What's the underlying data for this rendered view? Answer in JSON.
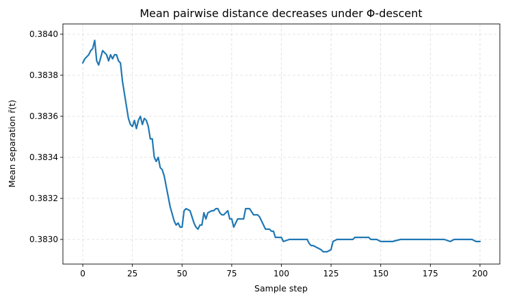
{
  "chart_data": {
    "type": "line",
    "title": "Mean pairwise distance decreases under Φ-descent",
    "xlabel": "Sample step",
    "ylabel": "Mean separation r̄(t)",
    "xlim": [
      -10,
      210
    ],
    "ylim": [
      0.38288,
      0.38405
    ],
    "xticks": [
      0,
      25,
      50,
      75,
      100,
      125,
      150,
      175,
      200
    ],
    "xtick_labels": [
      "0",
      "25",
      "50",
      "75",
      "100",
      "125",
      "150",
      "175",
      "200"
    ],
    "yticks": [
      0.383,
      0.3832,
      0.3834,
      0.3836,
      0.3838,
      0.384
    ],
    "ytick_labels": [
      "0.3830",
      "0.3832",
      "0.3834",
      "0.3836",
      "0.3838",
      "0.3840"
    ],
    "grid": true,
    "series": [
      {
        "color": "#1f77b4",
        "x": [
          0,
          1,
          2,
          3,
          4,
          5,
          6,
          7,
          8,
          10,
          12,
          13,
          14,
          15,
          16,
          17,
          18,
          19,
          20,
          22,
          23,
          24,
          25,
          26,
          27,
          28,
          29,
          30,
          31,
          32,
          33,
          34,
          35,
          36,
          37,
          38,
          39,
          40,
          41,
          42,
          44,
          46,
          47,
          48,
          49,
          50,
          51,
          52,
          54,
          56,
          57,
          58,
          59,
          60,
          61,
          62,
          63,
          65,
          66,
          67,
          68,
          69,
          70,
          71,
          72,
          73,
          74,
          75,
          76,
          78,
          80,
          81,
          82,
          84,
          86,
          87,
          88,
          89,
          90,
          92,
          93,
          94,
          95,
          96,
          97,
          100,
          101,
          104,
          112,
          113,
          114,
          115,
          116,
          118,
          120,
          121,
          123,
          125,
          126,
          128,
          129,
          130,
          136,
          137,
          142,
          144,
          145,
          147,
          148,
          150,
          153,
          156,
          160,
          162,
          164,
          166,
          170,
          175,
          180,
          181,
          182,
          185,
          187,
          188,
          190,
          191,
          195,
          196,
          198,
          200
        ],
        "y": [
          0.38386,
          0.38388,
          0.38389,
          0.3839,
          0.38392,
          0.38393,
          0.38397,
          0.38387,
          0.38385,
          0.38392,
          0.3839,
          0.38387,
          0.3839,
          0.38388,
          0.3839,
          0.3839,
          0.38387,
          0.38386,
          0.38377,
          0.38365,
          0.38359,
          0.38356,
          0.38355,
          0.38358,
          0.38354,
          0.38358,
          0.3836,
          0.38356,
          0.38359,
          0.38358,
          0.38355,
          0.38349,
          0.38349,
          0.3834,
          0.38338,
          0.3834,
          0.38335,
          0.38334,
          0.38331,
          0.38326,
          0.38316,
          0.38309,
          0.38307,
          0.38308,
          0.38306,
          0.38306,
          0.38314,
          0.38315,
          0.38314,
          0.38308,
          0.38306,
          0.38305,
          0.38307,
          0.38307,
          0.38313,
          0.3831,
          0.38313,
          0.38314,
          0.38314,
          0.38315,
          0.38315,
          0.38313,
          0.38312,
          0.38312,
          0.38313,
          0.38314,
          0.3831,
          0.3831,
          0.38306,
          0.3831,
          0.3831,
          0.3831,
          0.38315,
          0.38315,
          0.38312,
          0.38312,
          0.38312,
          0.38311,
          0.38309,
          0.38305,
          0.38305,
          0.38305,
          0.38304,
          0.38304,
          0.38301,
          0.38301,
          0.38299,
          0.383,
          0.383,
          0.383,
          0.38298,
          0.38297,
          0.38297,
          0.38296,
          0.38295,
          0.38294,
          0.38294,
          0.38295,
          0.38299,
          0.383,
          0.383,
          0.383,
          0.383,
          0.38301,
          0.38301,
          0.38301,
          0.383,
          0.383,
          0.383,
          0.38299,
          0.38299,
          0.38299,
          0.383,
          0.383,
          0.383,
          0.383,
          0.383,
          0.383,
          0.383,
          0.383,
          0.383,
          0.38299,
          0.383,
          0.383,
          0.383,
          0.383,
          0.383,
          0.383,
          0.38299,
          0.38299
        ]
      }
    ]
  }
}
